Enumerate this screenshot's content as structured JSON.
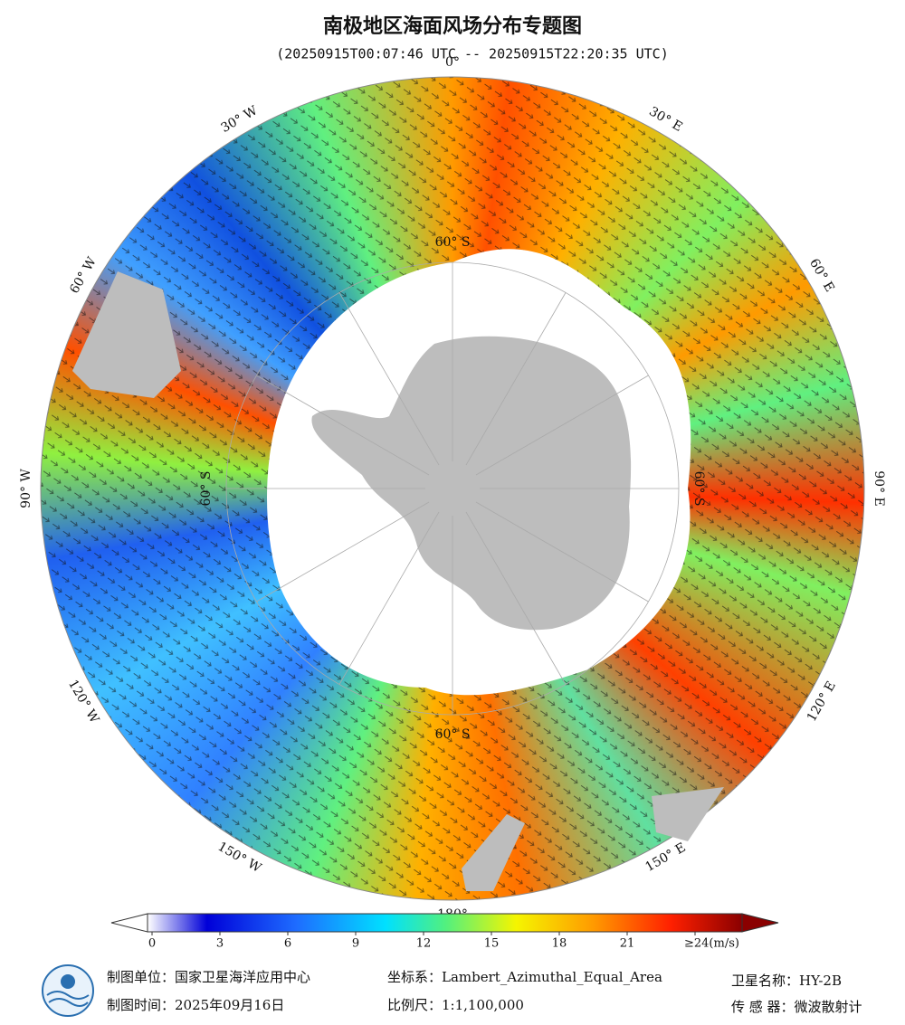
{
  "title": "南极地区海面风场分布专题图",
  "subtitle": "(20250915T00:07:46 UTC -- 20250915T22:20:35 UTC)",
  "map": {
    "longitude_labels": [
      "0°",
      "30° E",
      "60° E",
      "90° E",
      "120° E",
      "150° E",
      "180°",
      "150° W",
      "120° W",
      "90° W",
      "60° W",
      "30° W"
    ],
    "latitude_labels": [
      "60° S",
      "60° S",
      "60° S",
      "60° S"
    ]
  },
  "colorbar": {
    "ticks": [
      0,
      3,
      6,
      9,
      12,
      15,
      18,
      21,
      {
        "value": 24,
        "label": "≥24(m/s)"
      }
    ]
  },
  "footer": {
    "maker": "制图单位：国家卫星海洋应用中心",
    "date": "制图时间：2025年09月16日",
    "crs": "坐标系：Lambert_Azimuthal_Equal_Area",
    "scale": "比例尺：1:1,100,000",
    "satellite": "卫星名称：HY-2B",
    "sensor": "传 感 器：微波散射计"
  }
}
